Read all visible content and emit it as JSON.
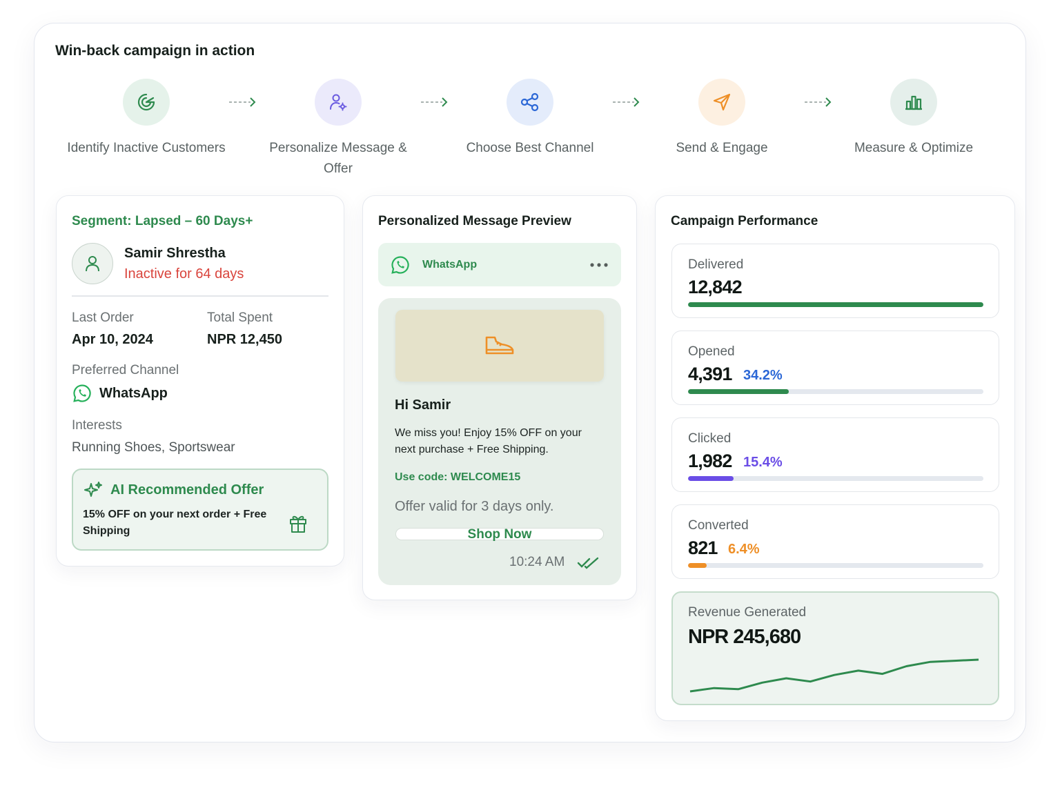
{
  "title": "Win-back campaign in action",
  "steps": [
    {
      "label": "Identify Inactive Customers",
      "icon": "target-icon",
      "bg": "#e5f2ea",
      "color": "#2e8a4e"
    },
    {
      "label": "Personalize Message & Offer",
      "icon": "user-settings-icon",
      "bg": "#ebeafb",
      "color": "#6a5be0"
    },
    {
      "label": "Choose Best Channel",
      "icon": "share-nodes-icon",
      "bg": "#e4ecfb",
      "color": "#2b67d6"
    },
    {
      "label": "Send & Engage",
      "icon": "send-icon",
      "bg": "#fdf0e1",
      "color": "#ee8f27"
    },
    {
      "label": "Measure & Optimize",
      "icon": "bar-chart-icon",
      "bg": "#e5efeb",
      "color": "#2e8a4e"
    }
  ],
  "segment": {
    "title": "Segment: Lapsed – 60 Days+",
    "customer_name": "Samir Shrestha",
    "inactive_text": "Inactive for 64 days",
    "last_order_label": "Last Order",
    "last_order_value": "Apr 10, 2024",
    "total_spent_label": "Total Spent",
    "total_spent_value": "NPR 12,450",
    "channel_label": "Preferred Channel",
    "channel_value": "WhatsApp",
    "interests_label": "Interests",
    "interests_value": "Running Shoes, Sportswear",
    "offer_title": "AI Recommended Offer",
    "offer_line1": "15% OFF on your next order + Free",
    "offer_line2": "Shipping"
  },
  "preview": {
    "title": "Personalized Message Preview",
    "channel": "WhatsApp",
    "greeting": "Hi Samir",
    "body_line1": "We miss you! Enjoy 15% OFF on your",
    "body_line2": "next purchase + Free Shipping.",
    "code": "Use code: WELCOME15",
    "validity": "Offer valid for 3 days only.",
    "button": "Shop Now",
    "time": "10:24 AM"
  },
  "performance": {
    "title": "Campaign Performance",
    "metrics": [
      {
        "label": "Delivered",
        "value": "12,842",
        "pct": "",
        "progress": 1.0,
        "color": "#2e8a4e"
      },
      {
        "label": "Opened",
        "value": "4,391",
        "pct": "34.2%",
        "progress": 0.342,
        "color": "#2e8a4e",
        "pct_color": "#2b67d6"
      },
      {
        "label": "Clicked",
        "value": "1,982",
        "pct": "15.4%",
        "progress": 0.154,
        "color": "#6a4de6",
        "pct_color": "#6a4de6"
      },
      {
        "label": "Converted",
        "value": "821",
        "pct": "6.4%",
        "progress": 0.064,
        "color": "#ee8f27",
        "pct_color": "#ee8f27"
      }
    ],
    "revenue_label": "Revenue Generated",
    "revenue_value": "NPR 245,680",
    "revenue_trend": [
      10,
      13,
      12,
      18,
      22,
      19,
      25,
      29,
      26,
      33,
      37,
      38,
      39
    ]
  }
}
